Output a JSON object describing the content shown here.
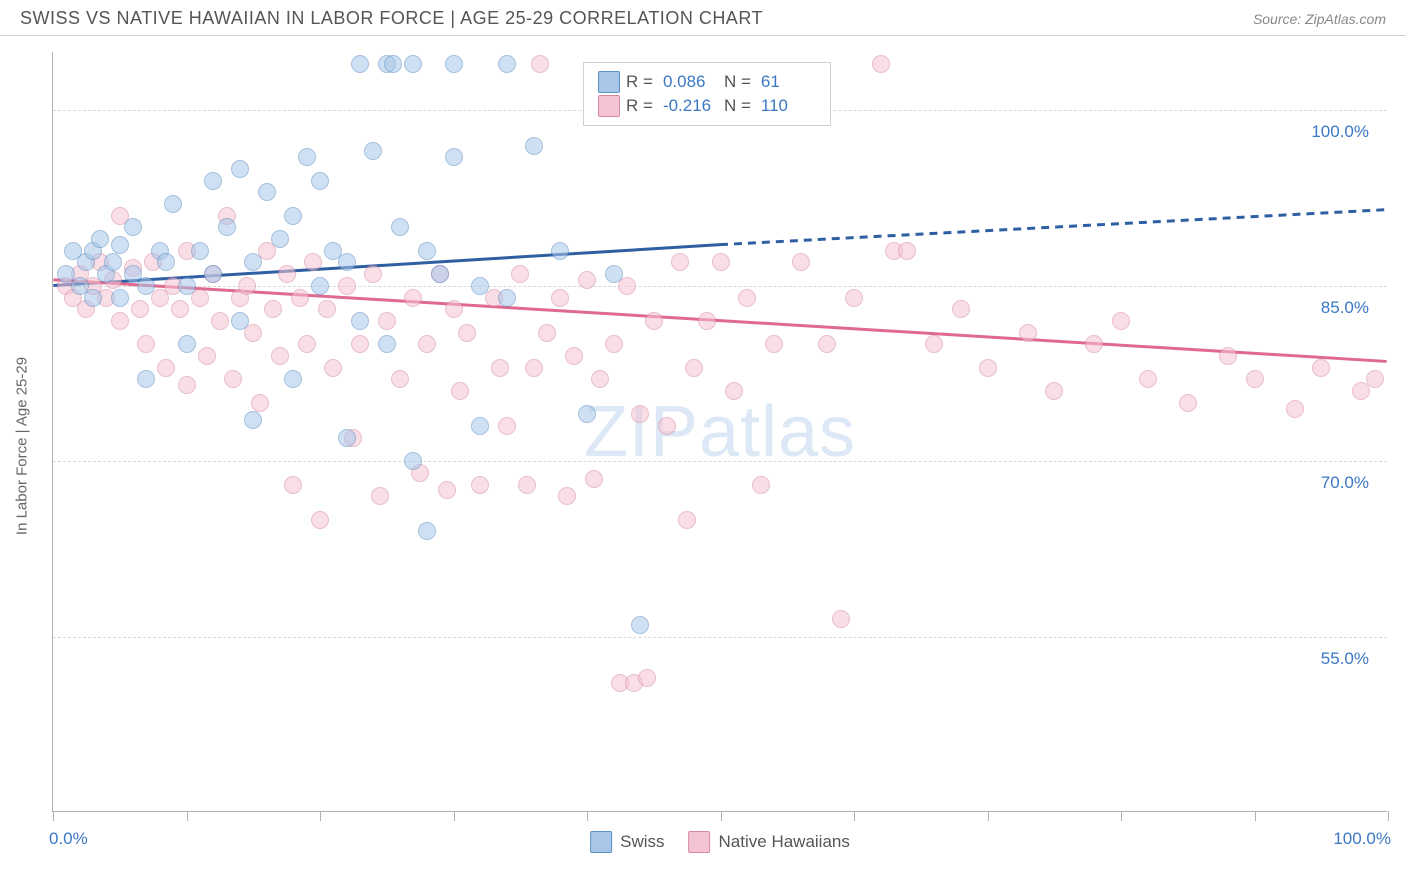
{
  "title": "SWISS VS NATIVE HAWAIIAN IN LABOR FORCE | AGE 25-29 CORRELATION CHART",
  "source": "Source: ZipAtlas.com",
  "ylabel": "In Labor Force | Age 25-29",
  "watermark": "ZIPatlas",
  "colors": {
    "series_a_fill": "#a8c7e8",
    "series_a_stroke": "#5a8fc7",
    "series_a_line": "#2f5fa3",
    "series_b_fill": "#f5c4d3",
    "series_b_stroke": "#d88aa3",
    "series_b_line": "#e06a8f",
    "axis_text": "#3b78c4",
    "grid": "#d8d8d8"
  },
  "chart": {
    "type": "scatter",
    "xlim": [
      0,
      100
    ],
    "ylim": [
      40,
      105
    ],
    "y_gridlines": [
      55,
      70,
      85,
      100
    ],
    "y_tick_labels": [
      "55.0%",
      "70.0%",
      "85.0%",
      "100.0%"
    ],
    "x_ticks": [
      0,
      10,
      20,
      30,
      40,
      50,
      60,
      70,
      80,
      90,
      100
    ],
    "x_axis_labels": {
      "left": "0.0%",
      "right": "100.0%"
    },
    "marker_radius": 9,
    "marker_opacity": 0.55
  },
  "stats_legend": {
    "rows": [
      {
        "r_label": "R =",
        "r_val": "0.086",
        "n_label": "N =",
        "n_val": "61"
      },
      {
        "r_label": "R =",
        "r_val": "-0.216",
        "n_label": "N =",
        "n_val": "110"
      }
    ]
  },
  "bottom_legend": {
    "a": "Swiss",
    "b": "Native Hawaiians"
  },
  "trend_lines": {
    "a": {
      "x1": 0,
      "y1": 85,
      "x2_solid": 50,
      "y2_solid": 88.5,
      "x2": 100,
      "y2": 91.5
    },
    "b": {
      "x1": 0,
      "y1": 85.5,
      "x2": 100,
      "y2": 78.5
    }
  },
  "series_a": [
    [
      1,
      86
    ],
    [
      1.5,
      88
    ],
    [
      2,
      85
    ],
    [
      2.5,
      87
    ],
    [
      3,
      88
    ],
    [
      3,
      84
    ],
    [
      3.5,
      89
    ],
    [
      4,
      86
    ],
    [
      4.5,
      87
    ],
    [
      5,
      88.5
    ],
    [
      5,
      84
    ],
    [
      6,
      86
    ],
    [
      6,
      90
    ],
    [
      7,
      85
    ],
    [
      7,
      77
    ],
    [
      8,
      88
    ],
    [
      8.5,
      87
    ],
    [
      9,
      92
    ],
    [
      10,
      85
    ],
    [
      10,
      80
    ],
    [
      11,
      88
    ],
    [
      12,
      94
    ],
    [
      12,
      86
    ],
    [
      13,
      90
    ],
    [
      14,
      95
    ],
    [
      14,
      82
    ],
    [
      15,
      87
    ],
    [
      15,
      73.5
    ],
    [
      16,
      93
    ],
    [
      17,
      89
    ],
    [
      18,
      91
    ],
    [
      18,
      77
    ],
    [
      19,
      96
    ],
    [
      20,
      85
    ],
    [
      20,
      94
    ],
    [
      21,
      88
    ],
    [
      22,
      87
    ],
    [
      22,
      72
    ],
    [
      23,
      104
    ],
    [
      23,
      82
    ],
    [
      24,
      96.5
    ],
    [
      25,
      104
    ],
    [
      25,
      80
    ],
    [
      25.5,
      104
    ],
    [
      26,
      90
    ],
    [
      27,
      70
    ],
    [
      27,
      104
    ],
    [
      28,
      88
    ],
    [
      28,
      64
    ],
    [
      29,
      86
    ],
    [
      30,
      104
    ],
    [
      30,
      96
    ],
    [
      32,
      85
    ],
    [
      32,
      73
    ],
    [
      34,
      104
    ],
    [
      34,
      84
    ],
    [
      36,
      97
    ],
    [
      38,
      88
    ],
    [
      40,
      74
    ],
    [
      42,
      86
    ],
    [
      44,
      56
    ]
  ],
  "series_b": [
    [
      1,
      85
    ],
    [
      1.5,
      84
    ],
    [
      2,
      86
    ],
    [
      2.5,
      83
    ],
    [
      3,
      85
    ],
    [
      3.5,
      87
    ],
    [
      4,
      84
    ],
    [
      4.5,
      85.5
    ],
    [
      5,
      91
    ],
    [
      5,
      82
    ],
    [
      6,
      86.5
    ],
    [
      6.5,
      83
    ],
    [
      7,
      80
    ],
    [
      7.5,
      87
    ],
    [
      8,
      84
    ],
    [
      8.5,
      78
    ],
    [
      9,
      85
    ],
    [
      9.5,
      83
    ],
    [
      10,
      76.5
    ],
    [
      10,
      88
    ],
    [
      11,
      84
    ],
    [
      11.5,
      79
    ],
    [
      12,
      86
    ],
    [
      12.5,
      82
    ],
    [
      13,
      91
    ],
    [
      13.5,
      77
    ],
    [
      14,
      84
    ],
    [
      14.5,
      85
    ],
    [
      15,
      81
    ],
    [
      15.5,
      75
    ],
    [
      16,
      88
    ],
    [
      16.5,
      83
    ],
    [
      17,
      79
    ],
    [
      17.5,
      86
    ],
    [
      18,
      68
    ],
    [
      18.5,
      84
    ],
    [
      19,
      80
    ],
    [
      19.5,
      87
    ],
    [
      20,
      65
    ],
    [
      20.5,
      83
    ],
    [
      21,
      78
    ],
    [
      22,
      85
    ],
    [
      22.5,
      72
    ],
    [
      23,
      80
    ],
    [
      24,
      86
    ],
    [
      24.5,
      67
    ],
    [
      25,
      82
    ],
    [
      26,
      77
    ],
    [
      27,
      84
    ],
    [
      27.5,
      69
    ],
    [
      28,
      80
    ],
    [
      29,
      86
    ],
    [
      29.5,
      67.5
    ],
    [
      30,
      83
    ],
    [
      30.5,
      76
    ],
    [
      31,
      81
    ],
    [
      32,
      68
    ],
    [
      33,
      84
    ],
    [
      33.5,
      78
    ],
    [
      34,
      73
    ],
    [
      35,
      86
    ],
    [
      35.5,
      68
    ],
    [
      36,
      78
    ],
    [
      36.5,
      104
    ],
    [
      37,
      81
    ],
    [
      38,
      84
    ],
    [
      38.5,
      67
    ],
    [
      39,
      79
    ],
    [
      40,
      85.5
    ],
    [
      40.5,
      68.5
    ],
    [
      41,
      77
    ],
    [
      42,
      80
    ],
    [
      42.5,
      51
    ],
    [
      43,
      85
    ],
    [
      43.5,
      51
    ],
    [
      44,
      74
    ],
    [
      44.5,
      51.5
    ],
    [
      45,
      82
    ],
    [
      46,
      73
    ],
    [
      47,
      87
    ],
    [
      47.5,
      65
    ],
    [
      48,
      78
    ],
    [
      49,
      82
    ],
    [
      50,
      87
    ],
    [
      51,
      76
    ],
    [
      52,
      84
    ],
    [
      53,
      68
    ],
    [
      54,
      80
    ],
    [
      56,
      87
    ],
    [
      58,
      80
    ],
    [
      59,
      56.5
    ],
    [
      60,
      84
    ],
    [
      62,
      104
    ],
    [
      63,
      88
    ],
    [
      64,
      88
    ],
    [
      66,
      80
    ],
    [
      68,
      83
    ],
    [
      70,
      78
    ],
    [
      73,
      81
    ],
    [
      75,
      76
    ],
    [
      78,
      80
    ],
    [
      80,
      82
    ],
    [
      82,
      77
    ],
    [
      85,
      75
    ],
    [
      88,
      79
    ],
    [
      90,
      77
    ],
    [
      93,
      74.5
    ],
    [
      95,
      78
    ],
    [
      98,
      76
    ],
    [
      99,
      77
    ]
  ]
}
